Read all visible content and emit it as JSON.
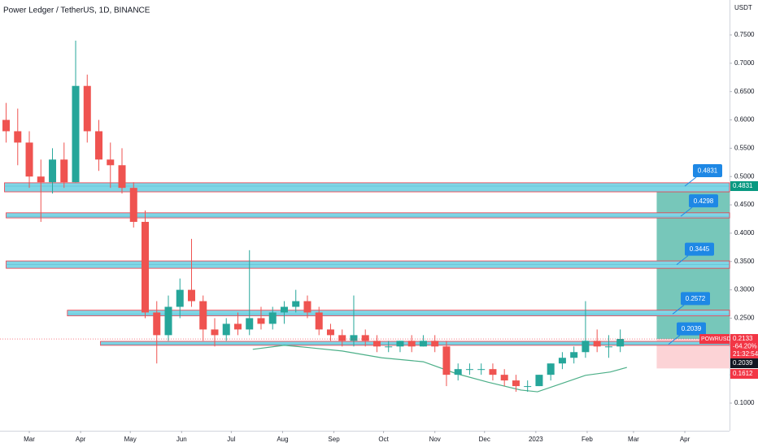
{
  "chart_data": {
    "type": "candlestick",
    "title": "Power Ledger / TetherUS, 1D, BINANCE",
    "y_unit": "USDT",
    "x": [
      14,
      21,
      28,
      35,
      42,
      49,
      56,
      63,
      70,
      77,
      84,
      91,
      98,
      105,
      112,
      119,
      126,
      133,
      140,
      147,
      154,
      161,
      168,
      175,
      182,
      189,
      196,
      203,
      210,
      217,
      224,
      231,
      238,
      245,
      252,
      259,
      266,
      273,
      280,
      287,
      294,
      301,
      308,
      315,
      322,
      329,
      336,
      343,
      350,
      357,
      364,
      371,
      378,
      385
    ],
    "open": [
      0.6,
      0.58,
      0.56,
      0.5,
      0.49,
      0.53,
      0.49,
      0.66,
      0.58,
      0.53,
      0.52,
      0.48,
      0.42,
      0.26,
      0.22,
      0.27,
      0.3,
      0.28,
      0.23,
      0.22,
      0.24,
      0.23,
      0.25,
      0.24,
      0.26,
      0.27,
      0.28,
      0.26,
      0.23,
      0.22,
      0.21,
      0.22,
      0.21,
      0.2,
      0.2,
      0.21,
      0.2,
      0.21,
      0.2,
      0.15,
      0.16,
      0.16,
      0.16,
      0.15,
      0.14,
      0.13,
      0.13,
      0.15,
      0.17,
      0.18,
      0.19,
      0.21,
      0.2,
      0.2
    ],
    "high": [
      0.63,
      0.62,
      0.58,
      0.53,
      0.55,
      0.56,
      0.74,
      0.68,
      0.6,
      0.56,
      0.55,
      0.49,
      0.44,
      0.28,
      0.29,
      0.32,
      0.39,
      0.29,
      0.25,
      0.25,
      0.26,
      0.37,
      0.27,
      0.27,
      0.28,
      0.3,
      0.29,
      0.27,
      0.24,
      0.23,
      0.29,
      0.23,
      0.22,
      0.21,
      0.21,
      0.22,
      0.22,
      0.22,
      0.21,
      0.17,
      0.17,
      0.17,
      0.17,
      0.16,
      0.15,
      0.14,
      0.15,
      0.17,
      0.19,
      0.2,
      0.28,
      0.23,
      0.22,
      0.23
    ],
    "low": [
      0.56,
      0.52,
      0.48,
      0.42,
      0.47,
      0.48,
      0.49,
      0.56,
      0.51,
      0.48,
      0.47,
      0.41,
      0.25,
      0.17,
      0.21,
      0.25,
      0.27,
      0.21,
      0.2,
      0.21,
      0.22,
      0.22,
      0.23,
      0.23,
      0.24,
      0.26,
      0.25,
      0.22,
      0.21,
      0.2,
      0.2,
      0.2,
      0.19,
      0.19,
      0.19,
      0.19,
      0.2,
      0.19,
      0.13,
      0.14,
      0.15,
      0.15,
      0.14,
      0.13,
      0.12,
      0.12,
      0.13,
      0.14,
      0.16,
      0.17,
      0.18,
      0.19,
      0.18,
      0.19
    ],
    "close": [
      0.58,
      0.56,
      0.5,
      0.49,
      0.53,
      0.49,
      0.66,
      0.58,
      0.53,
      0.52,
      0.48,
      0.42,
      0.26,
      0.22,
      0.27,
      0.3,
      0.28,
      0.23,
      0.22,
      0.24,
      0.23,
      0.25,
      0.24,
      0.26,
      0.27,
      0.28,
      0.26,
      0.23,
      0.22,
      0.21,
      0.22,
      0.21,
      0.2,
      0.2,
      0.21,
      0.2,
      0.21,
      0.2,
      0.15,
      0.16,
      0.16,
      0.16,
      0.15,
      0.14,
      0.13,
      0.13,
      0.15,
      0.17,
      0.18,
      0.19,
      0.21,
      0.2,
      0.2,
      0.2133
    ],
    "up_color": "#26a69a",
    "down_color": "#ef5350",
    "xlim": [
      10.3,
      451
    ],
    "ylim": [
      0.0512,
      0.8117
    ],
    "xticks": [
      {
        "value": 28,
        "label": "Mar"
      },
      {
        "value": 59,
        "label": "Apr"
      },
      {
        "value": 89,
        "label": "May"
      },
      {
        "value": 120,
        "label": "Jun"
      },
      {
        "value": 150,
        "label": "Jul"
      },
      {
        "value": 181,
        "label": "Aug"
      },
      {
        "value": 212,
        "label": "Sep"
      },
      {
        "value": 242,
        "label": "Oct"
      },
      {
        "value": 273,
        "label": "Nov"
      },
      {
        "value": 303,
        "label": "Dec"
      },
      {
        "value": 334,
        "label": "2023"
      },
      {
        "value": 365,
        "label": "Feb"
      },
      {
        "value": 393,
        "label": "Mar"
      },
      {
        "value": 424,
        "label": "Apr"
      }
    ],
    "yticks": [
      {
        "value": 0.1,
        "label": "0.1000"
      },
      {
        "value": 0.15,
        "label": "0.1500"
      },
      {
        "value": 0.2,
        "label": "0.2000"
      },
      {
        "value": 0.25,
        "label": "0.2500"
      },
      {
        "value": 0.3,
        "label": "0.3000"
      },
      {
        "value": 0.35,
        "label": "0.3500"
      },
      {
        "value": 0.4,
        "label": "0.4000"
      },
      {
        "value": 0.45,
        "label": "0.4500"
      },
      {
        "value": 0.5,
        "label": "0.5000"
      },
      {
        "value": 0.55,
        "label": "0.5500"
      },
      {
        "value": 0.6,
        "label": "0.6000"
      },
      {
        "value": 0.65,
        "label": "0.6500"
      },
      {
        "value": 0.7,
        "label": "0.7000"
      },
      {
        "value": 0.75,
        "label": "0.7500"
      }
    ],
    "grid": false,
    "zones": [
      {
        "value": 0.4831,
        "low": 0.473,
        "high": 0.489,
        "x0": 13
      },
      {
        "value": 0.4298,
        "low": 0.427,
        "high": 0.436,
        "x0": 14
      },
      {
        "value": 0.3445,
        "low": 0.338,
        "high": 0.351,
        "x0": 14
      },
      {
        "value": 0.2572,
        "low": 0.254,
        "high": 0.264,
        "x0": 51
      },
      {
        "value": 0.2039,
        "low": 0.202,
        "high": 0.209,
        "x0": 71
      }
    ],
    "ma": {
      "color": "#4caf88",
      "x": [
        163,
        182,
        197,
        217,
        241,
        266,
        286,
        305,
        325,
        335,
        349,
        364,
        379,
        389
      ],
      "values": [
        0.195,
        0.202,
        0.198,
        0.192,
        0.18,
        0.173,
        0.152,
        0.137,
        0.123,
        0.12,
        0.134,
        0.149,
        0.155,
        0.163
      ]
    },
    "position": {
      "entry": 0.2133,
      "target": 0.4831,
      "stop": 0.1612,
      "x0": 407
    },
    "last": {
      "symbol": "POWRUSDT",
      "price": 0.2133,
      "change": "-64.20%",
      "countdown": "21:32:54"
    }
  }
}
